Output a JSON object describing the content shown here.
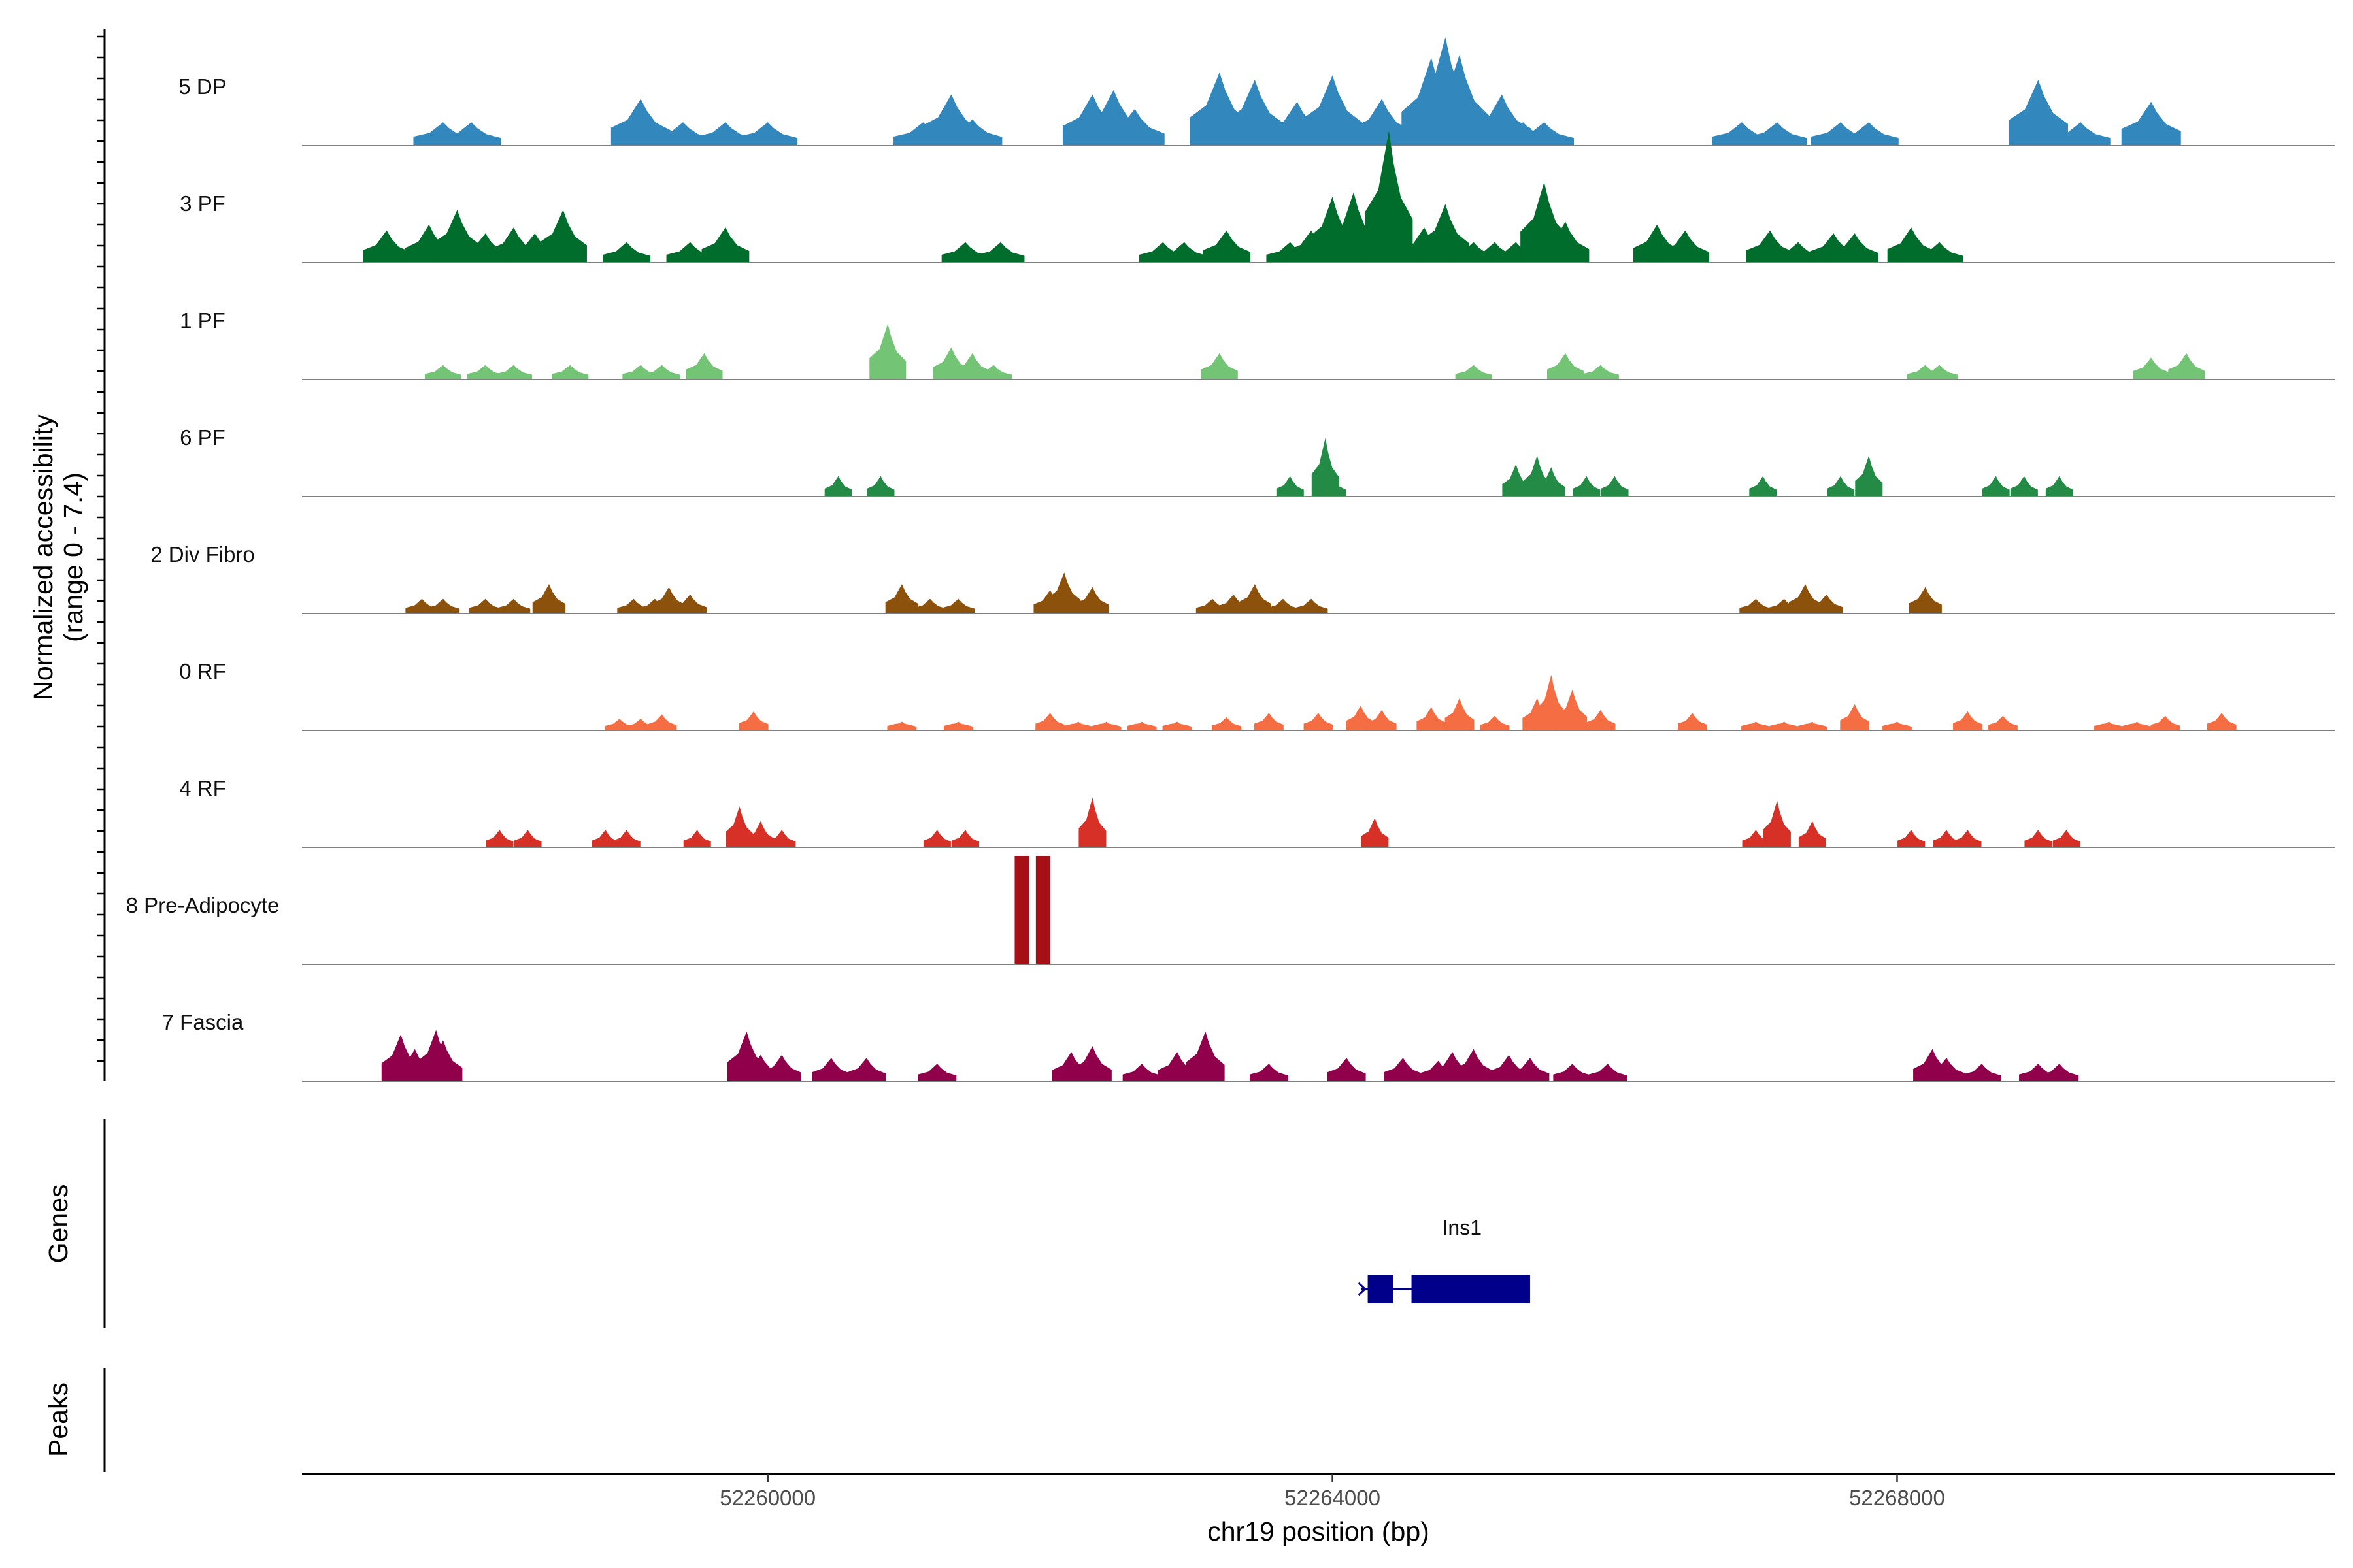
{
  "chart_data": {
    "type": "area",
    "title": "",
    "ylabel": "Normalized accessibility",
    "ylabel_range": "(range 0 - 7.4)",
    "ylim": [
      0,
      7.4
    ],
    "xlabel": "chr19 position (bp)",
    "xlim": [
      52256700,
      52271100
    ],
    "x_ticks": [
      52260000,
      52264000,
      52268000
    ],
    "x_tick_labels": [
      "52260000",
      "52264000",
      "52268000"
    ],
    "tracks": [
      {
        "name": "5 DP",
        "color": "#3288bd",
        "peaks": [
          [
            52257700,
            6.5,
            1.6
          ],
          [
            52257900,
            6.5,
            1.6
          ],
          [
            52259100,
            6.5,
            3.2
          ],
          [
            52259200,
            6.5,
            1.6
          ],
          [
            52259400,
            6.5,
            1.6
          ],
          [
            52259700,
            6.5,
            1.6
          ],
          [
            52260000,
            6.5,
            1.6
          ],
          [
            52261100,
            6.5,
            1.6
          ],
          [
            52261300,
            6.5,
            3.5
          ],
          [
            52261450,
            6.5,
            1.8
          ],
          [
            52262300,
            6.5,
            3.5
          ],
          [
            52262450,
            6.5,
            3.8
          ],
          [
            52262600,
            6.5,
            2.5
          ],
          [
            52263200,
            6.5,
            5.0
          ],
          [
            52263300,
            6.5,
            1.8
          ],
          [
            52263450,
            6.5,
            4.5
          ],
          [
            52263550,
            6.5,
            1.8
          ],
          [
            52263750,
            6.5,
            3.0
          ],
          [
            52263900,
            6.5,
            2.2
          ],
          [
            52264000,
            6.5,
            4.8
          ],
          [
            52264100,
            6.5,
            2.0
          ],
          [
            52264350,
            6.5,
            3.2
          ],
          [
            52264550,
            6.5,
            1.6
          ],
          [
            52264700,
            6.5,
            6.0
          ],
          [
            52264800,
            6.5,
            7.4
          ],
          [
            52264900,
            6.5,
            6.2
          ],
          [
            52265200,
            6.5,
            3.5
          ],
          [
            52265350,
            6.5,
            1.6
          ],
          [
            52265500,
            6.5,
            1.6
          ],
          [
            52266900,
            6.5,
            1.6
          ],
          [
            52267150,
            6.5,
            1.6
          ],
          [
            52267600,
            6.5,
            1.6
          ],
          [
            52267800,
            6.5,
            1.6
          ],
          [
            52269000,
            6.5,
            4.5
          ],
          [
            52269300,
            6.5,
            1.6
          ],
          [
            52269800,
            6.5,
            3.0
          ]
        ]
      },
      {
        "name": "3 PF",
        "color": "#006d2c",
        "peaks": [
          [
            52257300,
            5.2,
            2.2
          ],
          [
            52257600,
            5.2,
            2.6
          ],
          [
            52257800,
            5.2,
            3.6
          ],
          [
            52258000,
            5.2,
            2.0
          ],
          [
            52258200,
            5.2,
            2.4
          ],
          [
            52258350,
            5.2,
            2.0
          ],
          [
            52258550,
            5.2,
            3.6
          ],
          [
            52259000,
            5.2,
            1.4
          ],
          [
            52259450,
            5.2,
            1.4
          ],
          [
            52259700,
            5.2,
            2.4
          ],
          [
            52261400,
            5.2,
            1.4
          ],
          [
            52261650,
            5.2,
            1.4
          ],
          [
            52262800,
            5.2,
            1.4
          ],
          [
            52262950,
            5.2,
            1.4
          ],
          [
            52263250,
            5.2,
            2.2
          ],
          [
            52263700,
            5.2,
            1.4
          ],
          [
            52263850,
            5.2,
            2.2
          ],
          [
            52264000,
            5.2,
            4.5
          ],
          [
            52264150,
            5.2,
            4.8
          ],
          [
            52264400,
            5.2,
            9.0
          ],
          [
            52264650,
            5.2,
            2.4
          ],
          [
            52264800,
            5.2,
            4.0
          ],
          [
            52265000,
            5.2,
            1.4
          ],
          [
            52265150,
            5.2,
            1.4
          ],
          [
            52265300,
            5.2,
            1.4
          ],
          [
            52265500,
            5.2,
            5.5
          ],
          [
            52265650,
            5.2,
            2.8
          ],
          [
            52266300,
            5.2,
            2.6
          ],
          [
            52266500,
            5.2,
            2.2
          ],
          [
            52267100,
            5.2,
            2.2
          ],
          [
            52267300,
            5.2,
            1.4
          ],
          [
            52267550,
            5.2,
            2.0
          ],
          [
            52267700,
            5.2,
            2.0
          ],
          [
            52268100,
            5.2,
            2.4
          ],
          [
            52268300,
            5.2,
            1.4
          ]
        ]
      },
      {
        "name": "1 PF",
        "color": "#74c476",
        "peaks": [
          [
            52257700,
            4.0,
            1.0
          ],
          [
            52258000,
            4.0,
            1.0
          ],
          [
            52258200,
            4.0,
            1.0
          ],
          [
            52258600,
            4.0,
            1.0
          ],
          [
            52259100,
            4.0,
            1.0
          ],
          [
            52259250,
            4.0,
            1.0
          ],
          [
            52259550,
            4.0,
            1.8
          ],
          [
            52260850,
            4.0,
            3.8
          ],
          [
            52261300,
            4.0,
            2.2
          ],
          [
            52261450,
            4.0,
            1.8
          ],
          [
            52261600,
            4.0,
            1.0
          ],
          [
            52263200,
            4.0,
            1.8
          ],
          [
            52265000,
            4.0,
            1.0
          ],
          [
            52265650,
            4.0,
            1.8
          ],
          [
            52265900,
            4.0,
            1.0
          ],
          [
            52268200,
            4.0,
            1.0
          ],
          [
            52268300,
            4.0,
            1.0
          ],
          [
            52269800,
            4.0,
            1.5
          ],
          [
            52270050,
            4.0,
            1.8
          ]
        ]
      },
      {
        "name": "6 PF",
        "color": "#238b45",
        "peaks": [
          [
            52260500,
            3.0,
            1.4
          ],
          [
            52260800,
            3.0,
            1.4
          ],
          [
            52263700,
            3.0,
            1.4
          ],
          [
            52263950,
            3.0,
            4.0
          ],
          [
            52264000,
            3.0,
            1.4
          ],
          [
            52265300,
            3.0,
            2.2
          ],
          [
            52265450,
            3.0,
            2.8
          ],
          [
            52265550,
            3.0,
            2.0
          ],
          [
            52265800,
            3.0,
            1.4
          ],
          [
            52266000,
            3.0,
            1.4
          ],
          [
            52267050,
            3.0,
            1.4
          ],
          [
            52267600,
            3.0,
            1.4
          ],
          [
            52267800,
            3.0,
            2.8
          ],
          [
            52268700,
            3.0,
            1.4
          ],
          [
            52268900,
            3.0,
            1.4
          ],
          [
            52269150,
            3.0,
            1.4
          ]
        ]
      },
      {
        "name": "2 Div Fibro",
        "color": "#8c510a",
        "peaks": [
          [
            52257550,
            3.6,
            1.0
          ],
          [
            52257700,
            3.6,
            1.0
          ],
          [
            52258000,
            3.6,
            1.0
          ],
          [
            52258200,
            3.6,
            1.0
          ],
          [
            52258450,
            3.6,
            2.0
          ],
          [
            52259050,
            3.6,
            1.0
          ],
          [
            52259200,
            3.6,
            1.0
          ],
          [
            52259300,
            3.6,
            1.8
          ],
          [
            52259450,
            3.6,
            1.3
          ],
          [
            52260950,
            3.6,
            2.0
          ],
          [
            52261150,
            3.6,
            1.0
          ],
          [
            52261350,
            3.6,
            1.0
          ],
          [
            52262000,
            3.6,
            1.6
          ],
          [
            52262100,
            3.6,
            2.8
          ],
          [
            52262300,
            3.6,
            1.8
          ],
          [
            52263150,
            3.6,
            1.0
          ],
          [
            52263300,
            3.6,
            1.3
          ],
          [
            52263450,
            3.6,
            2.0
          ],
          [
            52263650,
            3.6,
            1.0
          ],
          [
            52263850,
            3.6,
            1.0
          ],
          [
            52267000,
            3.6,
            1.0
          ],
          [
            52267200,
            3.6,
            1.0
          ],
          [
            52267350,
            3.6,
            2.0
          ],
          [
            52267500,
            3.6,
            1.3
          ],
          [
            52268200,
            3.6,
            1.8
          ]
        ]
      },
      {
        "name": "0 RF",
        "color": "#f46d43",
        "peaks": [
          [
            52258950,
            3.2,
            0.8
          ],
          [
            52259100,
            3.2,
            0.8
          ],
          [
            52259250,
            3.2,
            1.1
          ],
          [
            52259900,
            3.2,
            1.3
          ],
          [
            52260950,
            3.2,
            0.6
          ],
          [
            52261350,
            3.2,
            0.6
          ],
          [
            52262000,
            3.2,
            1.2
          ],
          [
            52262200,
            3.2,
            0.6
          ],
          [
            52262400,
            3.2,
            0.6
          ],
          [
            52262650,
            3.2,
            0.6
          ],
          [
            52262900,
            3.2,
            0.6
          ],
          [
            52263250,
            3.2,
            0.9
          ],
          [
            52263550,
            3.2,
            1.2
          ],
          [
            52263900,
            3.2,
            1.2
          ],
          [
            52264200,
            3.2,
            1.7
          ],
          [
            52264350,
            3.2,
            1.4
          ],
          [
            52264700,
            3.2,
            1.6
          ],
          [
            52264900,
            3.2,
            2.2
          ],
          [
            52265150,
            3.2,
            1.0
          ],
          [
            52265450,
            3.2,
            2.2
          ],
          [
            52265550,
            3.2,
            3.8
          ],
          [
            52265700,
            3.2,
            2.8
          ],
          [
            52265900,
            3.2,
            1.4
          ],
          [
            52266550,
            3.2,
            1.2
          ],
          [
            52267000,
            3.2,
            0.6
          ],
          [
            52267200,
            3.2,
            0.6
          ],
          [
            52267400,
            3.2,
            0.6
          ],
          [
            52267700,
            3.2,
            1.8
          ],
          [
            52268000,
            3.2,
            0.6
          ],
          [
            52268500,
            3.2,
            1.3
          ],
          [
            52268750,
            3.2,
            1.0
          ],
          [
            52269500,
            3.2,
            0.6
          ],
          [
            52269700,
            3.2,
            0.6
          ],
          [
            52269900,
            3.2,
            1.0
          ],
          [
            52270300,
            3.2,
            1.2
          ]
        ]
      },
      {
        "name": "4 RF",
        "color": "#d73027",
        "peaks": [
          [
            52258100,
            3.0,
            1.2
          ],
          [
            52258300,
            3.0,
            1.2
          ],
          [
            52258850,
            3.0,
            1.2
          ],
          [
            52259000,
            3.0,
            1.2
          ],
          [
            52259500,
            3.0,
            1.2
          ],
          [
            52259800,
            3.0,
            2.8
          ],
          [
            52259950,
            3.0,
            1.8
          ],
          [
            52260100,
            3.0,
            1.2
          ],
          [
            52261200,
            3.0,
            1.2
          ],
          [
            52261400,
            3.0,
            1.2
          ],
          [
            52262300,
            3.0,
            3.4
          ],
          [
            52264300,
            3.0,
            2.0
          ],
          [
            52267000,
            3.0,
            1.2
          ],
          [
            52267150,
            3.0,
            3.2
          ],
          [
            52267400,
            3.0,
            1.8
          ],
          [
            52268100,
            3.0,
            1.2
          ],
          [
            52268350,
            3.0,
            1.2
          ],
          [
            52268500,
            3.0,
            1.2
          ],
          [
            52269000,
            3.0,
            1.2
          ],
          [
            52269200,
            3.0,
            1.2
          ]
        ]
      },
      {
        "name": "8 Pre-Adipocyte",
        "color": "#a50f15",
        "peaks": [
          [
            52261800,
            7.4,
            7.4
          ],
          [
            52261950,
            7.4,
            7.4
          ]
        ]
      },
      {
        "name": "7 Fascia",
        "color": "#91004b",
        "peaks": [
          [
            52257400,
            4.2,
            3.2
          ],
          [
            52257500,
            4.2,
            2.2
          ],
          [
            52257650,
            4.2,
            3.5
          ],
          [
            52257700,
            4.2,
            2.8
          ],
          [
            52259850,
            4.2,
            3.4
          ],
          [
            52259950,
            4.2,
            1.8
          ],
          [
            52260100,
            4.2,
            1.8
          ],
          [
            52260450,
            4.2,
            1.6
          ],
          [
            52260700,
            4.2,
            1.6
          ],
          [
            52261200,
            4.2,
            1.2
          ],
          [
            52262150,
            4.2,
            2.0
          ],
          [
            52262300,
            4.2,
            2.4
          ],
          [
            52262650,
            4.2,
            1.2
          ],
          [
            52262900,
            4.2,
            2.0
          ],
          [
            52263100,
            4.2,
            3.4
          ],
          [
            52263550,
            4.2,
            1.2
          ],
          [
            52264100,
            4.2,
            1.6
          ],
          [
            52264500,
            4.2,
            1.6
          ],
          [
            52264750,
            4.2,
            1.4
          ],
          [
            52264850,
            4.2,
            2.0
          ],
          [
            52265000,
            4.2,
            2.2
          ],
          [
            52265250,
            4.2,
            1.8
          ],
          [
            52265400,
            4.2,
            1.6
          ],
          [
            52265700,
            4.2,
            1.2
          ],
          [
            52265950,
            4.2,
            1.2
          ],
          [
            52268250,
            4.2,
            2.2
          ],
          [
            52268350,
            4.2,
            1.6
          ],
          [
            52268600,
            4.2,
            1.2
          ],
          [
            52269000,
            4.2,
            1.2
          ],
          [
            52269150,
            4.2,
            1.2
          ]
        ]
      }
    ],
    "genes": [
      {
        "name": "Ins1",
        "strand": "-",
        "start": 52264250,
        "end": 52265400,
        "exons": [
          [
            52264250,
            52264430
          ],
          [
            52264560,
            52265400
          ]
        ]
      }
    ],
    "peaks_track": {
      "name": "Peaks",
      "regions": []
    }
  },
  "panels": {
    "genes_label": "Genes",
    "peaks_label": "Peaks"
  },
  "colors": {
    "axis": "#000000",
    "baseline": "#808080",
    "gene": "#00008b",
    "tick_text": "#4d4d4d"
  }
}
